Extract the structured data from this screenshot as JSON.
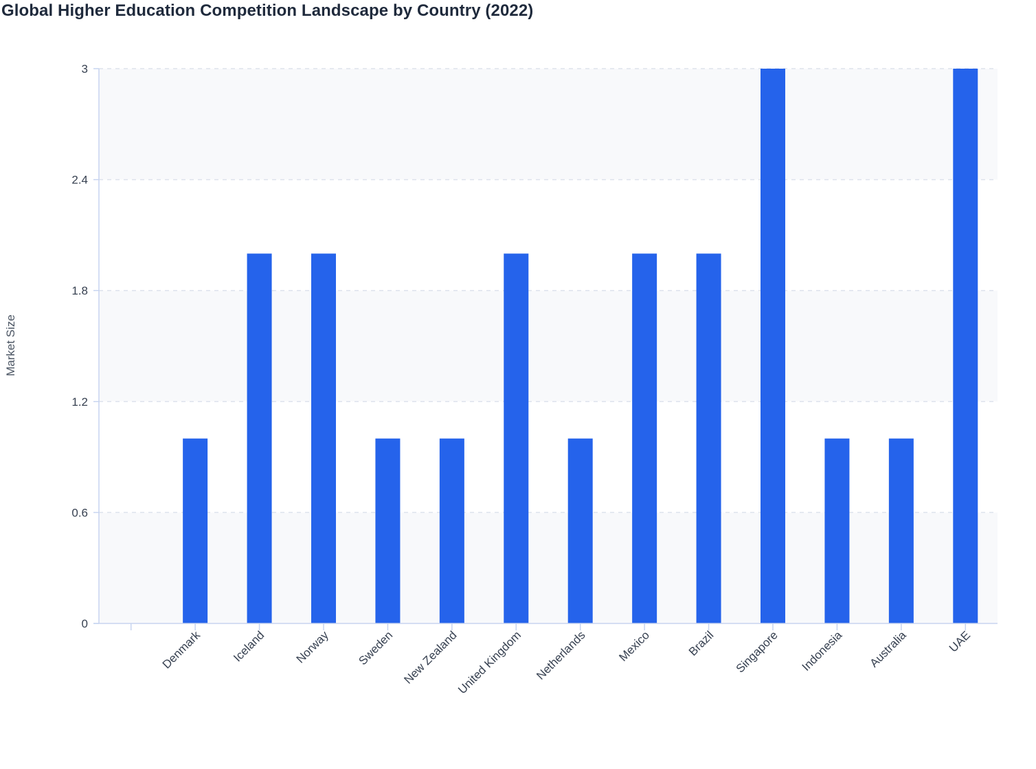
{
  "title": "Global Higher Education Competition Landscape by Country (2022)",
  "colors": {
    "bar": "#2563eb",
    "band": "#f8f9fb",
    "grid": "#dde2ec",
    "axis": "#c7d4f0",
    "text": "#374151",
    "title": "#1f2a3c"
  },
  "chart_data": {
    "type": "bar",
    "title": "Global Higher Education Competition Landscape by Country (2022)",
    "xlabel": "",
    "ylabel": "Market Size",
    "categories": [
      "",
      "Denmark",
      "Iceland",
      "Norway",
      "Sweden",
      "New Zealand",
      "United Kingdom",
      "Netherlands",
      "Mexico",
      "Brazil",
      "Singapore",
      "Indonesia",
      "Australia",
      "UAE"
    ],
    "values": [
      null,
      1,
      2,
      2,
      1,
      1,
      2,
      1,
      2,
      2,
      3,
      1,
      1,
      3
    ],
    "ylim": [
      0,
      3
    ],
    "yticks": [
      "0",
      "0.6",
      "1.2",
      "1.8",
      "2.4",
      "3"
    ],
    "grid": true,
    "legend": null
  }
}
